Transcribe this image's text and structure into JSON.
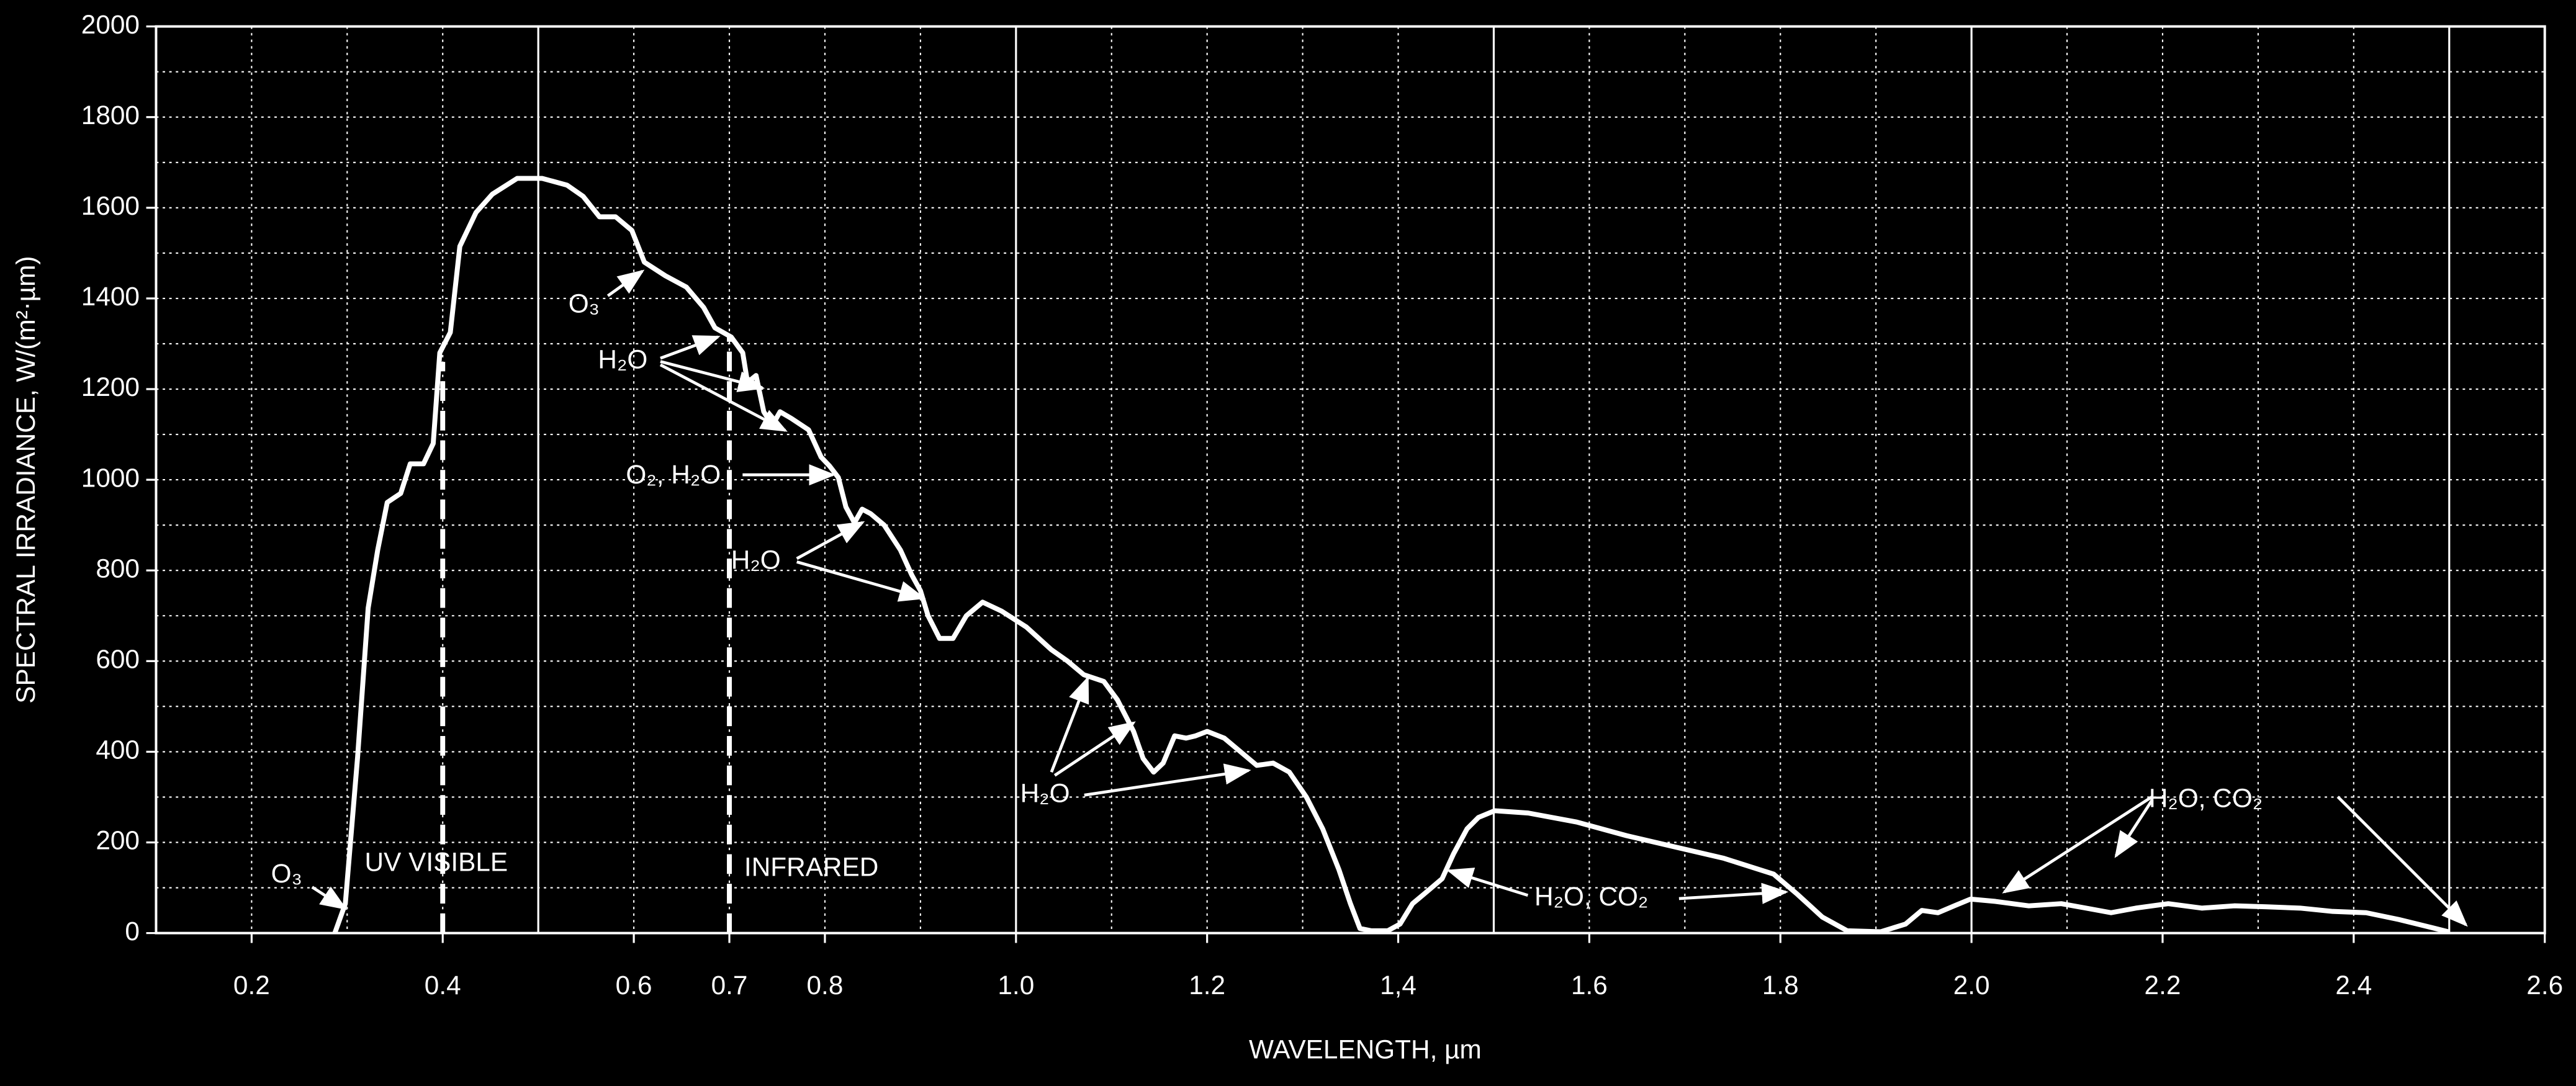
{
  "chart_data": {
    "type": "line",
    "x_label": "WAVELENGTH, µm",
    "y_label": "SPECTRAL IRRADIANCE, W/(m²·µm)",
    "xlim": [
      0.1,
      2.6
    ],
    "ylim": [
      0,
      2000
    ],
    "xticks": [
      0.2,
      0.4,
      0.6,
      0.7,
      0.8,
      {
        "value": 1,
        "label": "1.0"
      },
      1.2,
      {
        "value": 1.4,
        "label": "1,4"
      },
      1.6,
      1.8,
      {
        "value": 2,
        "label": "2.0"
      },
      2.2,
      2.4,
      2.6
    ],
    "yticks": [
      0,
      200,
      400,
      600,
      800,
      1000,
      1200,
      1400,
      1600,
      1800,
      2000
    ],
    "x_minor_grid": [
      0.3,
      0.5,
      0.9,
      1.1,
      1.3,
      1.5,
      1.7,
      1.9,
      2.1,
      2.3,
      2.5
    ],
    "y_minor_grid": [
      100,
      300,
      500,
      700,
      900,
      1100,
      1300,
      1500,
      1700,
      1900
    ],
    "x_solid_grid": [
      0.5,
      1,
      1.5,
      2,
      2.5
    ],
    "grid": true,
    "series": [
      {
        "color": "#ffffff",
        "x": [
          0.287,
          0.298,
          0.311,
          0.322,
          0.332,
          0.342,
          0.356,
          0.366,
          0.38,
          0.39,
          0.397,
          0.408,
          0.418,
          0.435,
          0.452,
          0.478,
          0.504,
          0.53,
          0.547,
          0.564,
          0.581,
          0.598,
          0.611,
          0.633,
          0.655,
          0.673,
          0.685,
          0.702,
          0.714,
          0.719,
          0.728,
          0.736,
          0.745,
          0.753,
          0.765,
          0.783,
          0.796,
          0.805,
          0.814,
          0.822,
          0.831,
          0.839,
          0.848,
          0.862,
          0.879,
          0.891,
          0.9,
          0.908,
          0.92,
          0.934,
          0.948,
          0.965,
          0.985,
          1.011,
          1.037,
          1.054,
          1.071,
          1.092,
          1.106,
          1.123,
          1.133,
          1.144,
          1.154,
          1.166,
          1.178,
          1.188,
          1.2,
          1.218,
          1.235,
          1.252,
          1.269,
          1.286,
          1.304,
          1.321,
          1.338,
          1.35,
          1.36,
          1.372,
          1.389,
          1.402,
          1.415,
          1.432,
          1.446,
          1.458,
          1.472,
          1.484,
          1.501,
          1.536,
          1.587,
          1.639,
          1.69,
          1.741,
          1.793,
          1.818,
          1.844,
          1.87,
          1.905,
          1.931,
          1.948,
          1.965,
          1.982,
          1.999,
          2.025,
          2.06,
          2.094,
          2.12,
          2.146,
          2.172,
          2.206,
          2.241,
          2.275,
          2.309,
          2.344,
          2.378,
          2.413,
          2.447,
          2.482,
          2.499
        ],
        "values": [
          0,
          65,
          390,
          717,
          845,
          950,
          970,
          1035,
          1035,
          1080,
          1280,
          1325,
          1515,
          1590,
          1630,
          1665,
          1665,
          1650,
          1625,
          1580,
          1580,
          1550,
          1480,
          1450,
          1425,
          1380,
          1335,
          1315,
          1280,
          1215,
          1230,
          1150,
          1120,
          1150,
          1135,
          1110,
          1050,
          1030,
          1005,
          940,
          905,
          935,
          925,
          900,
          845,
          790,
          755,
          700,
          650,
          650,
          700,
          730,
          710,
          675,
          625,
          600,
          570,
          555,
          515,
          445,
          385,
          355,
          375,
          435,
          430,
          435,
          445,
          430,
          400,
          370,
          375,
          355,
          300,
          230,
          140,
          65,
          10,
          5,
          5,
          20,
          65,
          95,
          120,
          175,
          230,
          255,
          270,
          265,
          245,
          215,
          190,
          165,
          130,
          85,
          35,
          5,
          3,
          20,
          50,
          45,
          60,
          75,
          70,
          60,
          65,
          55,
          45,
          55,
          65,
          55,
          60,
          58,
          55,
          48,
          45,
          30,
          12,
          3
        ]
      }
    ],
    "boundaries": [
      {
        "x": 0.4,
        "top": 1260
      },
      {
        "x": 0.7,
        "top": 1320
      }
    ],
    "region_labels": [
      "UV VISIBLE",
      "INFRARED"
    ],
    "annotations": [
      "O₃",
      "O₃",
      "H₂O",
      "O₂, H₂O",
      "H₂O",
      "H₂O",
      "H₂O, CO₂",
      "H₂O, CO₂"
    ]
  }
}
